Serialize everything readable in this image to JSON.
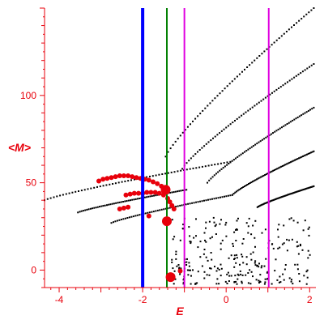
{
  "chart_data": {
    "type": "scatter",
    "title": "",
    "xlabel": "E",
    "ylabel": "<M>",
    "xlim": [
      -4.35,
      2.15
    ],
    "ylim": [
      -10,
      150
    ],
    "x_ticks": [
      -4,
      -2,
      0,
      2
    ],
    "y_ticks": [
      0,
      50,
      100
    ],
    "colors": {
      "axis": "#e8000b",
      "points": "#000000",
      "highlight": "#e8000b",
      "line_blue": "#0000ff",
      "line_green": "#008000",
      "line_magenta": "#e000e0"
    },
    "vertical_lines": [
      {
        "x": -2.0,
        "color": "blue"
      },
      {
        "x": -1.42,
        "color": "green"
      },
      {
        "x": -1.0,
        "color": "magenta"
      },
      {
        "x": 1.02,
        "color": "magenta"
      }
    ],
    "highlight_points": [
      {
        "x": -1.45,
        "y": 46,
        "r": 6
      },
      {
        "x": -1.42,
        "y": 28,
        "r": 6
      },
      {
        "x": -1.33,
        "y": -4,
        "r": 6
      }
    ],
    "red_arc_points": [
      [
        -3.05,
        51
      ],
      [
        -2.95,
        52
      ],
      [
        -2.85,
        52.5
      ],
      [
        -2.75,
        53
      ],
      [
        -2.65,
        53.5
      ],
      [
        -2.55,
        54
      ],
      [
        -2.45,
        54
      ],
      [
        -2.35,
        54
      ],
      [
        -2.25,
        53.5
      ],
      [
        -2.15,
        53
      ],
      [
        -2.05,
        52.5
      ],
      [
        -1.95,
        52
      ],
      [
        -1.85,
        51.5
      ],
      [
        -1.75,
        50.5
      ],
      [
        -1.65,
        49.5
      ],
      [
        -1.55,
        48
      ],
      [
        -2.4,
        43
      ],
      [
        -2.3,
        43.5
      ],
      [
        -2.2,
        44
      ],
      [
        -2.1,
        44
      ],
      [
        -2.0,
        44
      ],
      [
        -1.9,
        44.5
      ],
      [
        -1.8,
        44.5
      ],
      [
        -1.7,
        44.5
      ],
      [
        -1.6,
        44
      ],
      [
        -1.5,
        43
      ],
      [
        -1.4,
        41
      ],
      [
        -1.35,
        39
      ],
      [
        -1.3,
        37
      ],
      [
        -1.25,
        35
      ],
      [
        -2.55,
        35
      ],
      [
        -2.45,
        35.5
      ],
      [
        -2.35,
        36
      ],
      [
        -1.1,
        -0.5
      ],
      [
        -1.85,
        31
      ]
    ],
    "curves": [
      {
        "x": [
          -4.35,
          0.1
        ],
        "y": [
          40,
          62
        ]
      },
      {
        "x": [
          -3.55,
          -0.95
        ],
        "y": [
          33,
          46
        ]
      },
      {
        "x": [
          -2.75,
          0.15
        ],
        "y": [
          27,
          43
        ]
      },
      {
        "x": [
          -1.45,
          2.1
        ],
        "y": [
          65,
          150
        ]
      },
      {
        "x": [
          -1.05,
          2.1
        ],
        "y": [
          58,
          118
        ]
      },
      {
        "x": [
          -0.45,
          2.1
        ],
        "y": [
          50,
          93
        ]
      },
      {
        "x": [
          0.15,
          2.1
        ],
        "y": [
          43,
          68
        ]
      },
      {
        "x": [
          0.75,
          2.1
        ],
        "y": [
          36,
          48
        ]
      }
    ],
    "scatter_cloud": {
      "x": [
        -1.3,
        2.1
      ],
      "y": [
        -8,
        30
      ],
      "count": 260
    }
  }
}
